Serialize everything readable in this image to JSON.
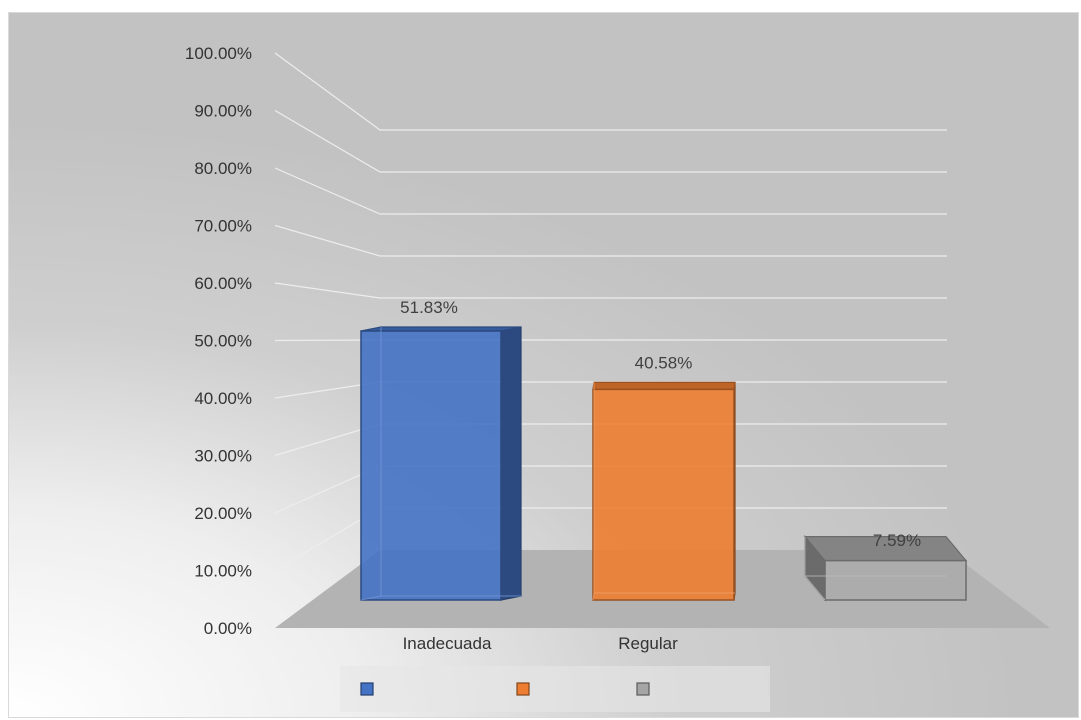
{
  "chart_data": {
    "type": "bar",
    "style": "3d-clustered-column",
    "categories": [
      "Inadecuada",
      "Regular",
      ""
    ],
    "values": [
      51.83,
      40.58,
      7.59
    ],
    "data_labels": [
      "51.83%",
      "40.58%",
      "7.59%"
    ],
    "colors": [
      "#4472c4",
      "#ed7d31",
      "#a5a5a5"
    ],
    "yticks": [
      "0.00%",
      "10.00%",
      "20.00%",
      "30.00%",
      "40.00%",
      "50.00%",
      "60.00%",
      "70.00%",
      "80.00%",
      "90.00%",
      "100.00%"
    ],
    "ylim": [
      0,
      100
    ],
    "grid": true,
    "legend": {
      "placement": "bottom",
      "entries": [
        "",
        "",
        ""
      ]
    },
    "title": "",
    "xlabel": "",
    "ylabel": ""
  }
}
